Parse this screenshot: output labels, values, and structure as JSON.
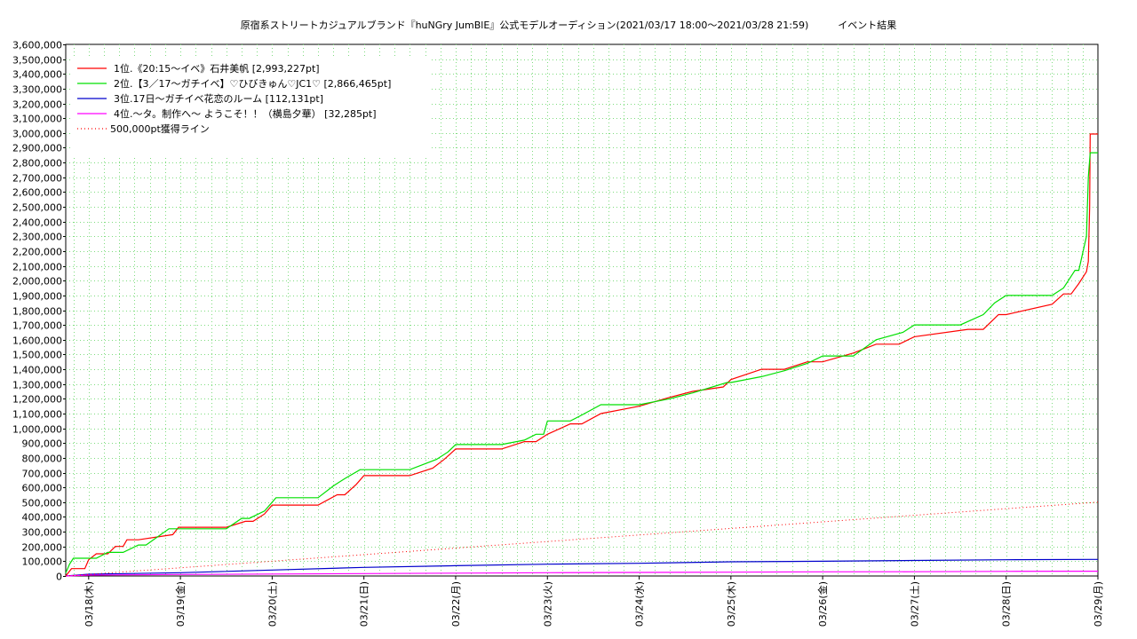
{
  "chart_data": {
    "type": "line",
    "title": "原宿系ストリートカジュアルブランド『huNGry JumBlE』公式モデルオーディション(2021/03/17 18:00〜2021/03/28 21:59)　　　イベント結果",
    "xlabel": "",
    "ylabel": "",
    "x_ticks": [
      "03/18(木)",
      "03/19(金)",
      "03/20(土)",
      "03/21(日)",
      "03/22(月)",
      "03/23(火)",
      "03/24(水)",
      "03/25(木)",
      "03/26(金)",
      "03/27(土)",
      "03/28(日)",
      "03/29(月)"
    ],
    "xlim": [
      "2021-03-17 18:00",
      "2021-03-29 00:00"
    ],
    "ylim": [
      0,
      3600000
    ],
    "y_tick_step": 100000,
    "grid": true,
    "legend_position": "top-left",
    "series": [
      {
        "name": "1位.《20:15〜イベ》石井美帆 [2,993,227pt]",
        "color": "#ff0000",
        "style": "solid",
        "x": [
          "2021-03-17 18:00",
          "2021-03-17 19:30",
          "2021-03-17 23:00",
          "2021-03-18 00:00",
          "2021-03-18 02:00",
          "2021-03-18 05:00",
          "2021-03-18 07:00",
          "2021-03-18 09:00",
          "2021-03-18 10:00",
          "2021-03-18 13:00",
          "2021-03-18 22:00",
          "2021-03-18 23:30",
          "2021-03-19 12:00",
          "2021-03-19 17:00",
          "2021-03-19 19:00",
          "2021-03-19 22:00",
          "2021-03-20 00:00",
          "2021-03-20 12:00",
          "2021-03-20 17:00",
          "2021-03-20 19:00",
          "2021-03-20 22:00",
          "2021-03-21 00:00",
          "2021-03-21 12:00",
          "2021-03-21 18:00",
          "2021-03-21 21:00",
          "2021-03-22 00:00",
          "2021-03-22 12:00",
          "2021-03-22 18:00",
          "2021-03-22 21:00",
          "2021-03-23 00:00",
          "2021-03-23 06:00",
          "2021-03-23 09:00",
          "2021-03-23 14:00",
          "2021-03-24 00:00",
          "2021-03-24 08:00",
          "2021-03-24 14:00",
          "2021-03-24 22:00",
          "2021-03-25 00:00",
          "2021-03-25 08:00",
          "2021-03-25 14:00",
          "2021-03-25 20:00",
          "2021-03-26 00:00",
          "2021-03-26 08:00",
          "2021-03-26 14:00",
          "2021-03-26 20:00",
          "2021-03-27 00:00",
          "2021-03-27 14:00",
          "2021-03-27 18:00",
          "2021-03-27 22:00",
          "2021-03-28 00:00",
          "2021-03-28 12:00",
          "2021-03-28 15:00",
          "2021-03-28 17:00",
          "2021-03-28 19:00",
          "2021-03-28 21:00",
          "2021-03-28 21:30",
          "2021-03-28 21:50",
          "2021-03-28 21:59",
          "2021-03-29 00:00"
        ],
        "values": [
          0,
          50000,
          50000,
          110000,
          150000,
          150000,
          200000,
          200000,
          245000,
          245000,
          280000,
          330000,
          330000,
          370000,
          370000,
          420000,
          480000,
          480000,
          550000,
          550000,
          620000,
          680000,
          680000,
          730000,
          790000,
          860000,
          860000,
          910000,
          910000,
          960000,
          1030000,
          1030000,
          1100000,
          1150000,
          1210000,
          1250000,
          1280000,
          1330000,
          1400000,
          1400000,
          1450000,
          1450000,
          1510000,
          1570000,
          1570000,
          1620000,
          1670000,
          1670000,
          1770000,
          1770000,
          1840000,
          1910000,
          1910000,
          1980000,
          2060000,
          2130000,
          2500000,
          2993227,
          2993227
        ]
      },
      {
        "name": "2位.【3／17〜ガチイベ】♡ひびきゅん♡JC1♡ [2,866,465pt]",
        "color": "#00e000",
        "style": "solid",
        "x": [
          "2021-03-17 18:00",
          "2021-03-17 19:00",
          "2021-03-17 20:00",
          "2021-03-18 02:00",
          "2021-03-18 05:00",
          "2021-03-18 09:00",
          "2021-03-18 13:00",
          "2021-03-18 15:00",
          "2021-03-18 21:00",
          "2021-03-19 00:00",
          "2021-03-19 12:00",
          "2021-03-19 16:00",
          "2021-03-19 18:00",
          "2021-03-19 22:00",
          "2021-03-20 01:00",
          "2021-03-20 12:00",
          "2021-03-20 16:00",
          "2021-03-20 19:00",
          "2021-03-20 23:00",
          "2021-03-21 00:00",
          "2021-03-21 12:00",
          "2021-03-21 19:00",
          "2021-03-21 22:00",
          "2021-03-22 00:00",
          "2021-03-22 12:00",
          "2021-03-22 18:00",
          "2021-03-22 21:00",
          "2021-03-22 23:00",
          "2021-03-23 00:00",
          "2021-03-23 06:00",
          "2021-03-23 09:00",
          "2021-03-23 14:00",
          "2021-03-24 00:00",
          "2021-03-24 08:00",
          "2021-03-24 14:00",
          "2021-03-24 23:00",
          "2021-03-25 00:00",
          "2021-03-25 08:00",
          "2021-03-25 14:00",
          "2021-03-25 20:00",
          "2021-03-26 00:00",
          "2021-03-26 08:00",
          "2021-03-26 14:00",
          "2021-03-26 21:00",
          "2021-03-27 00:00",
          "2021-03-27 12:00",
          "2021-03-27 18:00",
          "2021-03-27 21:00",
          "2021-03-28 00:00",
          "2021-03-28 12:00",
          "2021-03-28 15:00",
          "2021-03-28 18:00",
          "2021-03-28 19:00",
          "2021-03-28 21:00",
          "2021-03-28 21:30",
          "2021-03-28 21:59",
          "2021-03-29 00:00"
        ],
        "values": [
          20000,
          80000,
          120000,
          120000,
          160000,
          160000,
          210000,
          210000,
          320000,
          320000,
          320000,
          390000,
          390000,
          440000,
          530000,
          530000,
          610000,
          660000,
          720000,
          720000,
          720000,
          790000,
          840000,
          890000,
          890000,
          920000,
          960000,
          960000,
          1050000,
          1050000,
          1090000,
          1160000,
          1160000,
          1200000,
          1240000,
          1310000,
          1310000,
          1350000,
          1390000,
          1440000,
          1490000,
          1490000,
          1600000,
          1650000,
          1700000,
          1700000,
          1770000,
          1850000,
          1900000,
          1900000,
          1950000,
          2070000,
          2070000,
          2300000,
          2700000,
          2866465,
          2866465
        ]
      },
      {
        "name": "3位.17日〜ガチイベ花恋のルーム [112,131pt]",
        "color": "#0000cc",
        "style": "solid",
        "x": [
          "2021-03-17 18:00",
          "2021-03-18 00:00",
          "2021-03-19 00:00",
          "2021-03-20 00:00",
          "2021-03-21 00:00",
          "2021-03-22 00:00",
          "2021-03-23 00:00",
          "2021-03-24 00:00",
          "2021-03-25 00:00",
          "2021-03-26 00:00",
          "2021-03-27 00:00",
          "2021-03-28 00:00",
          "2021-03-28 21:59",
          "2021-03-29 00:00"
        ],
        "values": [
          0,
          12000,
          22000,
          40000,
          58000,
          70000,
          80000,
          86000,
          96000,
          100000,
          105000,
          110000,
          112131,
          112131
        ]
      },
      {
        "name": "4位.〜タ。制作へ〜 ようこそ！！（横島夕華） [32,285pt]",
        "color": "#ff00ff",
        "style": "solid",
        "x": [
          "2021-03-17 18:00",
          "2021-03-18 00:00",
          "2021-03-19 00:00",
          "2021-03-20 00:00",
          "2021-03-21 00:00",
          "2021-03-22 00:00",
          "2021-03-23 00:00",
          "2021-03-24 00:00",
          "2021-03-25 00:00",
          "2021-03-26 00:00",
          "2021-03-27 00:00",
          "2021-03-28 00:00",
          "2021-03-28 21:59",
          "2021-03-29 00:00"
        ],
        "values": [
          0,
          6000,
          10000,
          13000,
          16000,
          19000,
          22000,
          24000,
          26000,
          28000,
          29000,
          31000,
          32285,
          32285
        ]
      },
      {
        "name": "500,000pt獲得ライン",
        "color": "#ff0000",
        "style": "dotted",
        "x": [
          "2021-03-17 18:00",
          "2021-03-29 00:00"
        ],
        "values": [
          0,
          500000
        ]
      }
    ]
  }
}
